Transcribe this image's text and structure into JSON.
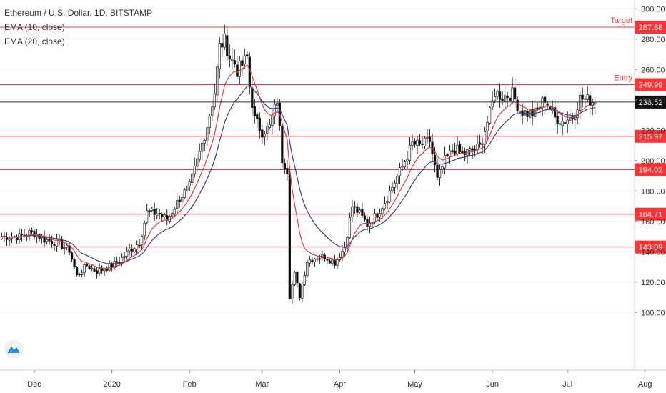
{
  "header": {
    "symbol_line": "Ethereum / U.S. Dollar, 1D, BITSTAMP",
    "indicators": [
      "EMA (10, close)",
      "EMA (20, close)"
    ]
  },
  "colors": {
    "up": "#222222",
    "down": "#000000",
    "ema10": "#e53935",
    "ema20": "#3b3f8f",
    "level_line": "#ff3333",
    "level_label_bg": "#ff3333",
    "price_line": "#333333",
    "price_label_bg": "#111111"
  },
  "chart_data": {
    "type": "candlestick",
    "title": "Ethereum / U.S. Dollar, 1D, BITSTAMP",
    "x_tick_labels": [
      "Dec",
      "2020",
      "Feb",
      "Mar",
      "Apr",
      "May",
      "Jun",
      "Jul",
      "Aug"
    ],
    "y_tick_labels": [
      "100.00",
      "120.00",
      "140.00",
      "160.00",
      "180.00",
      "200.00",
      "220.00",
      "240.00",
      "260.00",
      "280.00",
      "300.00"
    ],
    "ylim": [
      82,
      302
    ],
    "current_price": "238.52",
    "levels": [
      {
        "value": 287.88,
        "label": "287.88",
        "note": "Target"
      },
      {
        "value": 249.99,
        "label": "249.99",
        "note": "Entry"
      },
      {
        "value": 215.97,
        "label": "215.97"
      },
      {
        "value": 194.02,
        "label": "194.02"
      },
      {
        "value": 164.71,
        "label": "164.71"
      },
      {
        "value": 143.09,
        "label": "143.09"
      }
    ],
    "anchors": [
      [
        "2019-11-25",
        150
      ],
      [
        "2019-11-30",
        153
      ],
      [
        "2019-12-05",
        148
      ],
      [
        "2019-12-10",
        146
      ],
      [
        "2019-12-15",
        141
      ],
      [
        "2019-12-18",
        124
      ],
      [
        "2019-12-22",
        131
      ],
      [
        "2019-12-26",
        127
      ],
      [
        "2020-01-01",
        131
      ],
      [
        "2020-01-04",
        134
      ],
      [
        "2020-01-08",
        141
      ],
      [
        "2020-01-12",
        146
      ],
      [
        "2020-01-15",
        166
      ],
      [
        "2020-01-20",
        165
      ],
      [
        "2020-01-23",
        161
      ],
      [
        "2020-01-28",
        175
      ],
      [
        "2020-02-01",
        183
      ],
      [
        "2020-02-05",
        205
      ],
      [
        "2020-02-08",
        223
      ],
      [
        "2020-02-11",
        245
      ],
      [
        "2020-02-13",
        275
      ],
      [
        "2020-02-15",
        279
      ],
      [
        "2020-02-17",
        268
      ],
      [
        "2020-02-19",
        264
      ],
      [
        "2020-02-20",
        259
      ],
      [
        "2020-02-22",
        263
      ],
      [
        "2020-02-24",
        268
      ],
      [
        "2020-02-25",
        249
      ],
      [
        "2020-02-27",
        227
      ],
      [
        "2020-03-01",
        219
      ],
      [
        "2020-03-04",
        222
      ],
      [
        "2020-03-07",
        240
      ],
      [
        "2020-03-09",
        201
      ],
      [
        "2020-03-11",
        194
      ],
      [
        "2020-03-12",
        111
      ],
      [
        "2020-03-14",
        125
      ],
      [
        "2020-03-16",
        111
      ],
      [
        "2020-03-19",
        134
      ],
      [
        "2020-03-22",
        136
      ],
      [
        "2020-03-26",
        137
      ],
      [
        "2020-03-30",
        133
      ],
      [
        "2020-04-03",
        143
      ],
      [
        "2020-04-06",
        170
      ],
      [
        "2020-04-09",
        165
      ],
      [
        "2020-04-12",
        158
      ],
      [
        "2020-04-16",
        165
      ],
      [
        "2020-04-19",
        173
      ],
      [
        "2020-04-23",
        186
      ],
      [
        "2020-04-26",
        196
      ],
      [
        "2020-04-30",
        211
      ],
      [
        "2020-05-03",
        210
      ],
      [
        "2020-05-07",
        213
      ],
      [
        "2020-05-10",
        187
      ],
      [
        "2020-05-13",
        200
      ],
      [
        "2020-05-17",
        208
      ],
      [
        "2020-05-20",
        204
      ],
      [
        "2020-05-23",
        206
      ],
      [
        "2020-05-27",
        209
      ],
      [
        "2020-05-31",
        231
      ],
      [
        "2020-06-02",
        245
      ],
      [
        "2020-06-05",
        242
      ],
      [
        "2020-06-09",
        244
      ],
      [
        "2020-06-12",
        233
      ],
      [
        "2020-06-15",
        231
      ],
      [
        "2020-06-18",
        231
      ],
      [
        "2020-06-22",
        241
      ],
      [
        "2020-06-26",
        228
      ],
      [
        "2020-06-29",
        226
      ],
      [
        "2020-07-03",
        229
      ],
      [
        "2020-07-06",
        241
      ],
      [
        "2020-07-09",
        240
      ],
      [
        "2020-07-12",
        238.52
      ]
    ]
  }
}
